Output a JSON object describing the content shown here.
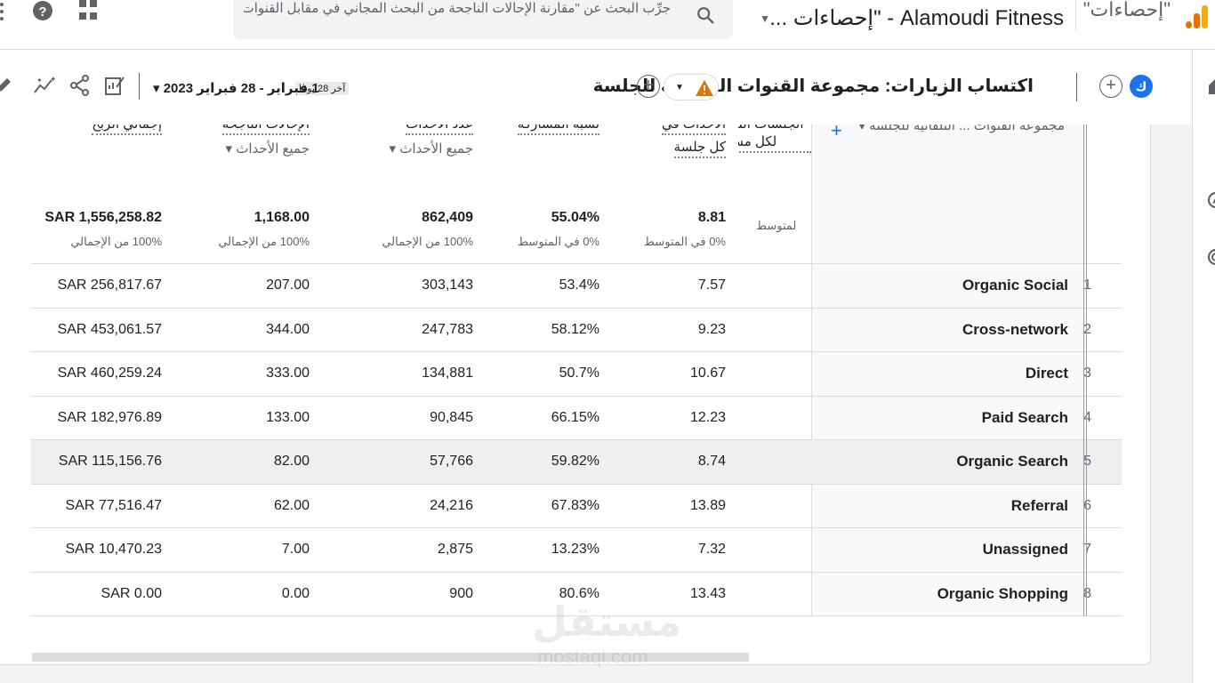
{
  "topbar": {
    "account": "\"إحصاءات\"",
    "property": "Alamoudi Fitness - \"إحصاءات ...",
    "search_placeholder": "جرِّب البحث عن \"مقارنة الإحالات الناجحة من البحث المجاني في مقابل القنوات المبا..."
  },
  "report": {
    "avatar_letter": "ك",
    "title": "اكتساب الزيارات: مجموعة القنوات التلقائية للجلسة",
    "date_last": "آخر 28 يومًا",
    "date_range": "1 فبراير - 28 فبراير 2023"
  },
  "table": {
    "dimension_header": "مجموعة القنوات ... التلقائية للجلسة",
    "columns": [
      {
        "title": "إجمالي الربح",
        "sub": "",
        "total": "SAR 1,556,258.82",
        "total_pct": "100% من الإجمالي"
      },
      {
        "title": "الإحالات الناجحة",
        "sub": "جميع الأحداث",
        "total": "1,168.00",
        "total_pct": "100% من الإجمالي"
      },
      {
        "title": "عدد الأحداث",
        "sub": "جميع الأحداث",
        "total": "862,409",
        "total_pct": "100% من الإجمالي"
      },
      {
        "title": "نسبة المشاركة",
        "sub": "",
        "total": "55.04%",
        "total_pct": "0% في المتوسط"
      },
      {
        "title": "الأحداث في",
        "sub": "كل جلسة",
        "total": "8.81",
        "total_pct": "0% في المتوسط"
      },
      {
        "title": "الجلسات التفاعلية لكل مستخدم",
        "sub": "",
        "total": "",
        "total_pct": "لمتوسط"
      }
    ],
    "rows": [
      {
        "idx": "1",
        "channel": "Organic Social",
        "revenue": "SAR 256,817.67",
        "conversions": "207.00",
        "events": "303,143",
        "engagement": "53.4%",
        "events_per_session": "7.57"
      },
      {
        "idx": "2",
        "channel": "Cross-network",
        "revenue": "SAR 453,061.57",
        "conversions": "344.00",
        "events": "247,783",
        "engagement": "58.12%",
        "events_per_session": "9.23"
      },
      {
        "idx": "3",
        "channel": "Direct",
        "revenue": "SAR 460,259.24",
        "conversions": "333.00",
        "events": "134,881",
        "engagement": "50.7%",
        "events_per_session": "10.67"
      },
      {
        "idx": "4",
        "channel": "Paid Search",
        "revenue": "SAR 182,976.89",
        "conversions": "133.00",
        "events": "90,845",
        "engagement": "66.15%",
        "events_per_session": "12.23"
      },
      {
        "idx": "5",
        "channel": "Organic Search",
        "revenue": "SAR 115,156.76",
        "conversions": "82.00",
        "events": "57,766",
        "engagement": "59.82%",
        "events_per_session": "8.74"
      },
      {
        "idx": "6",
        "channel": "Referral",
        "revenue": "SAR 77,516.47",
        "conversions": "62.00",
        "events": "24,216",
        "engagement": "67.83%",
        "events_per_session": "13.89"
      },
      {
        "idx": "7",
        "channel": "Unassigned",
        "revenue": "SAR 10,470.23",
        "conversions": "7.00",
        "events": "2,875",
        "engagement": "13.23%",
        "events_per_session": "7.32"
      },
      {
        "idx": "8",
        "channel": "Organic Shopping",
        "revenue": "SAR 0.00",
        "conversions": "0.00",
        "events": "900",
        "engagement": "80.6%",
        "events_per_session": "13.43"
      }
    ]
  },
  "watermark": {
    "main": "مستقل",
    "sub": "mostaql.com"
  },
  "colors": {
    "accent": "#1a73e8",
    "warning": "#e37400",
    "logo": "#f9ab00"
  }
}
